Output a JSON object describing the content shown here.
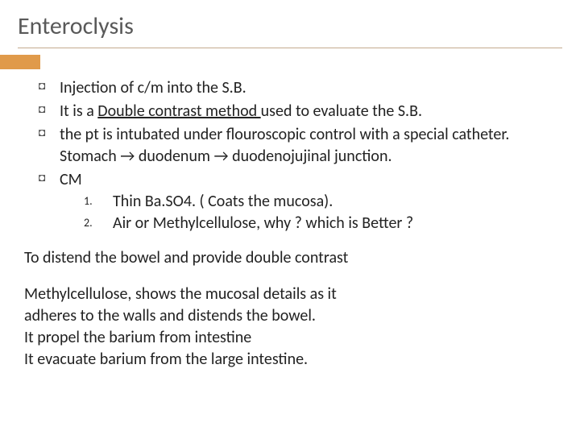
{
  "title": "Enteroclysis",
  "accent_color": "#e09a4a",
  "rule_color": "#c4aa8f",
  "bullets": [
    {
      "text": "Injection of c/m into the S.B."
    },
    {
      "prefix": "It is a ",
      "underline": "Double contrast method ",
      "suffix": "used to evaluate the S.B."
    },
    {
      "text": "the pt is intubated under flouroscopic control with a special catheter. Stomach → duodenum → duodenojujinal junction."
    },
    {
      "text": "CM"
    }
  ],
  "numbered": [
    {
      "num": "1.",
      "text": "Thin Ba.SO4. ( Coats the mucosa)."
    },
    {
      "num": "2.",
      "text": "Air or Methylcellulose, why ? which is Better ?"
    }
  ],
  "para1": "To distend the bowel and provide double contrast",
  "para2_lines": [
    "Methylcellulose, shows the mucosal details as it",
    "adheres to the walls and distends the bowel.",
    "It propel the barium from intestine",
    "It evacuate barium from the large intestine."
  ]
}
